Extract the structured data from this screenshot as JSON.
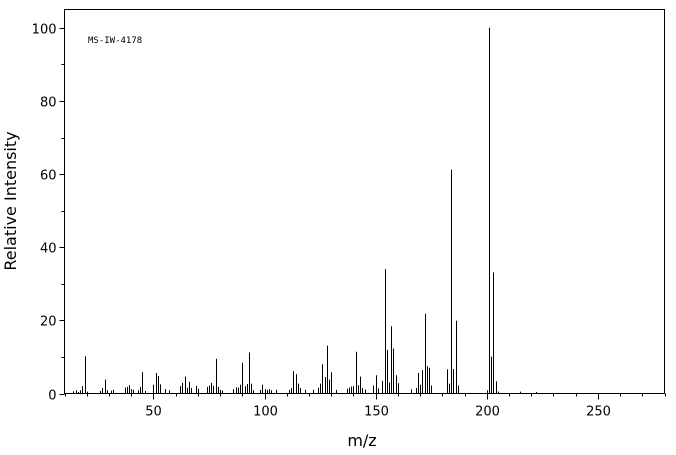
{
  "chart_data": {
    "type": "bar",
    "annotation": "MS-IW-4178",
    "xlabel": "m/z",
    "ylabel": "Relative Intensity",
    "xlim": [
      10,
      280
    ],
    "ylim": [
      0,
      105
    ],
    "x_ticks": [
      50,
      100,
      150,
      200,
      250
    ],
    "y_ticks": [
      0,
      20,
      40,
      60,
      80,
      100
    ],
    "grid": false,
    "peaks": [
      {
        "mz": 14,
        "intensity": 0.6
      },
      {
        "mz": 15,
        "intensity": 0.9
      },
      {
        "mz": 16,
        "intensity": 0.4
      },
      {
        "mz": 17,
        "intensity": 0.9
      },
      {
        "mz": 18,
        "intensity": 2.0
      },
      {
        "mz": 19,
        "intensity": 10.2
      },
      {
        "mz": 20,
        "intensity": 0.5
      },
      {
        "mz": 26,
        "intensity": 0.7
      },
      {
        "mz": 27,
        "intensity": 1.5
      },
      {
        "mz": 28,
        "intensity": 3.8
      },
      {
        "mz": 29,
        "intensity": 0.9
      },
      {
        "mz": 31,
        "intensity": 0.8
      },
      {
        "mz": 32,
        "intensity": 1.0
      },
      {
        "mz": 37,
        "intensity": 1.6
      },
      {
        "mz": 38,
        "intensity": 1.8
      },
      {
        "mz": 39,
        "intensity": 2.3
      },
      {
        "mz": 40,
        "intensity": 1.2
      },
      {
        "mz": 41,
        "intensity": 1.0
      },
      {
        "mz": 43,
        "intensity": 0.9
      },
      {
        "mz": 44,
        "intensity": 1.8
      },
      {
        "mz": 45,
        "intensity": 5.8
      },
      {
        "mz": 46,
        "intensity": 0.7
      },
      {
        "mz": 50,
        "intensity": 2.4
      },
      {
        "mz": 51,
        "intensity": 5.6
      },
      {
        "mz": 52,
        "intensity": 4.8
      },
      {
        "mz": 53,
        "intensity": 2.5
      },
      {
        "mz": 55,
        "intensity": 1.2
      },
      {
        "mz": 57,
        "intensity": 0.9
      },
      {
        "mz": 62,
        "intensity": 2.0
      },
      {
        "mz": 63,
        "intensity": 2.9
      },
      {
        "mz": 64,
        "intensity": 4.6
      },
      {
        "mz": 65,
        "intensity": 1.6
      },
      {
        "mz": 66,
        "intensity": 3.2
      },
      {
        "mz": 67,
        "intensity": 1.5
      },
      {
        "mz": 69,
        "intensity": 2.1
      },
      {
        "mz": 70,
        "intensity": 1.3
      },
      {
        "mz": 74,
        "intensity": 1.8
      },
      {
        "mz": 75,
        "intensity": 2.2
      },
      {
        "mz": 76,
        "intensity": 2.9
      },
      {
        "mz": 77,
        "intensity": 2.1
      },
      {
        "mz": 78,
        "intensity": 9.5
      },
      {
        "mz": 79,
        "intensity": 1.8
      },
      {
        "mz": 80,
        "intensity": 1.0
      },
      {
        "mz": 81,
        "intensity": 0.8
      },
      {
        "mz": 86,
        "intensity": 1.2
      },
      {
        "mz": 87,
        "intensity": 1.7
      },
      {
        "mz": 88,
        "intensity": 1.6
      },
      {
        "mz": 89,
        "intensity": 2.4
      },
      {
        "mz": 90,
        "intensity": 8.4
      },
      {
        "mz": 91,
        "intensity": 2.0
      },
      {
        "mz": 92,
        "intensity": 2.6
      },
      {
        "mz": 93,
        "intensity": 11.2
      },
      {
        "mz": 94,
        "intensity": 2.7
      },
      {
        "mz": 95,
        "intensity": 0.9
      },
      {
        "mz": 98,
        "intensity": 1.0
      },
      {
        "mz": 99,
        "intensity": 2.4
      },
      {
        "mz": 100,
        "intensity": 1.2
      },
      {
        "mz": 101,
        "intensity": 1.0
      },
      {
        "mz": 102,
        "intensity": 1.2
      },
      {
        "mz": 103,
        "intensity": 0.9
      },
      {
        "mz": 105,
        "intensity": 1.0
      },
      {
        "mz": 111,
        "intensity": 1.0
      },
      {
        "mz": 112,
        "intensity": 1.5
      },
      {
        "mz": 113,
        "intensity": 6.1
      },
      {
        "mz": 114,
        "intensity": 5.3
      },
      {
        "mz": 115,
        "intensity": 2.7
      },
      {
        "mz": 116,
        "intensity": 1.5
      },
      {
        "mz": 118,
        "intensity": 1.0
      },
      {
        "mz": 122,
        "intensity": 1.0
      },
      {
        "mz": 124,
        "intensity": 1.6
      },
      {
        "mz": 125,
        "intensity": 2.7
      },
      {
        "mz": 126,
        "intensity": 8.0
      },
      {
        "mz": 127,
        "intensity": 4.5
      },
      {
        "mz": 128,
        "intensity": 13.1
      },
      {
        "mz": 129,
        "intensity": 3.8
      },
      {
        "mz": 130,
        "intensity": 5.8
      },
      {
        "mz": 132,
        "intensity": 1.0
      },
      {
        "mz": 137,
        "intensity": 1.3
      },
      {
        "mz": 138,
        "intensity": 1.6
      },
      {
        "mz": 139,
        "intensity": 1.9
      },
      {
        "mz": 140,
        "intensity": 2.0
      },
      {
        "mz": 141,
        "intensity": 11.4
      },
      {
        "mz": 142,
        "intensity": 2.3
      },
      {
        "mz": 143,
        "intensity": 4.6
      },
      {
        "mz": 144,
        "intensity": 1.5
      },
      {
        "mz": 145,
        "intensity": 1.1
      },
      {
        "mz": 149,
        "intensity": 2.2
      },
      {
        "mz": 150,
        "intensity": 5.0
      },
      {
        "mz": 151,
        "intensity": 1.4
      },
      {
        "mz": 153,
        "intensity": 3.5
      },
      {
        "mz": 154,
        "intensity": 34.0
      },
      {
        "mz": 155,
        "intensity": 11.9
      },
      {
        "mz": 156,
        "intensity": 3.0
      },
      {
        "mz": 157,
        "intensity": 18.4
      },
      {
        "mz": 158,
        "intensity": 12.3
      },
      {
        "mz": 159,
        "intensity": 5.0
      },
      {
        "mz": 160,
        "intensity": 2.8
      },
      {
        "mz": 166,
        "intensity": 1.1
      },
      {
        "mz": 168,
        "intensity": 1.5
      },
      {
        "mz": 169,
        "intensity": 5.6
      },
      {
        "mz": 170,
        "intensity": 2.4
      },
      {
        "mz": 171,
        "intensity": 6.4
      },
      {
        "mz": 172,
        "intensity": 21.8
      },
      {
        "mz": 173,
        "intensity": 7.5
      },
      {
        "mz": 174,
        "intensity": 7.0
      },
      {
        "mz": 175,
        "intensity": 2.2
      },
      {
        "mz": 182,
        "intensity": 6.6
      },
      {
        "mz": 183,
        "intensity": 2.7
      },
      {
        "mz": 184,
        "intensity": 61.2
      },
      {
        "mz": 185,
        "intensity": 6.7
      },
      {
        "mz": 186,
        "intensity": 19.9
      },
      {
        "mz": 187,
        "intensity": 2.2
      },
      {
        "mz": 200,
        "intensity": 0.9
      },
      {
        "mz": 201,
        "intensity": 100
      },
      {
        "mz": 202,
        "intensity": 10.1
      },
      {
        "mz": 203,
        "intensity": 33.1
      },
      {
        "mz": 204,
        "intensity": 3.3
      },
      {
        "mz": 205,
        "intensity": 0.5
      },
      {
        "mz": 215,
        "intensity": 0.5
      },
      {
        "mz": 222,
        "intensity": 0.4
      }
    ]
  }
}
